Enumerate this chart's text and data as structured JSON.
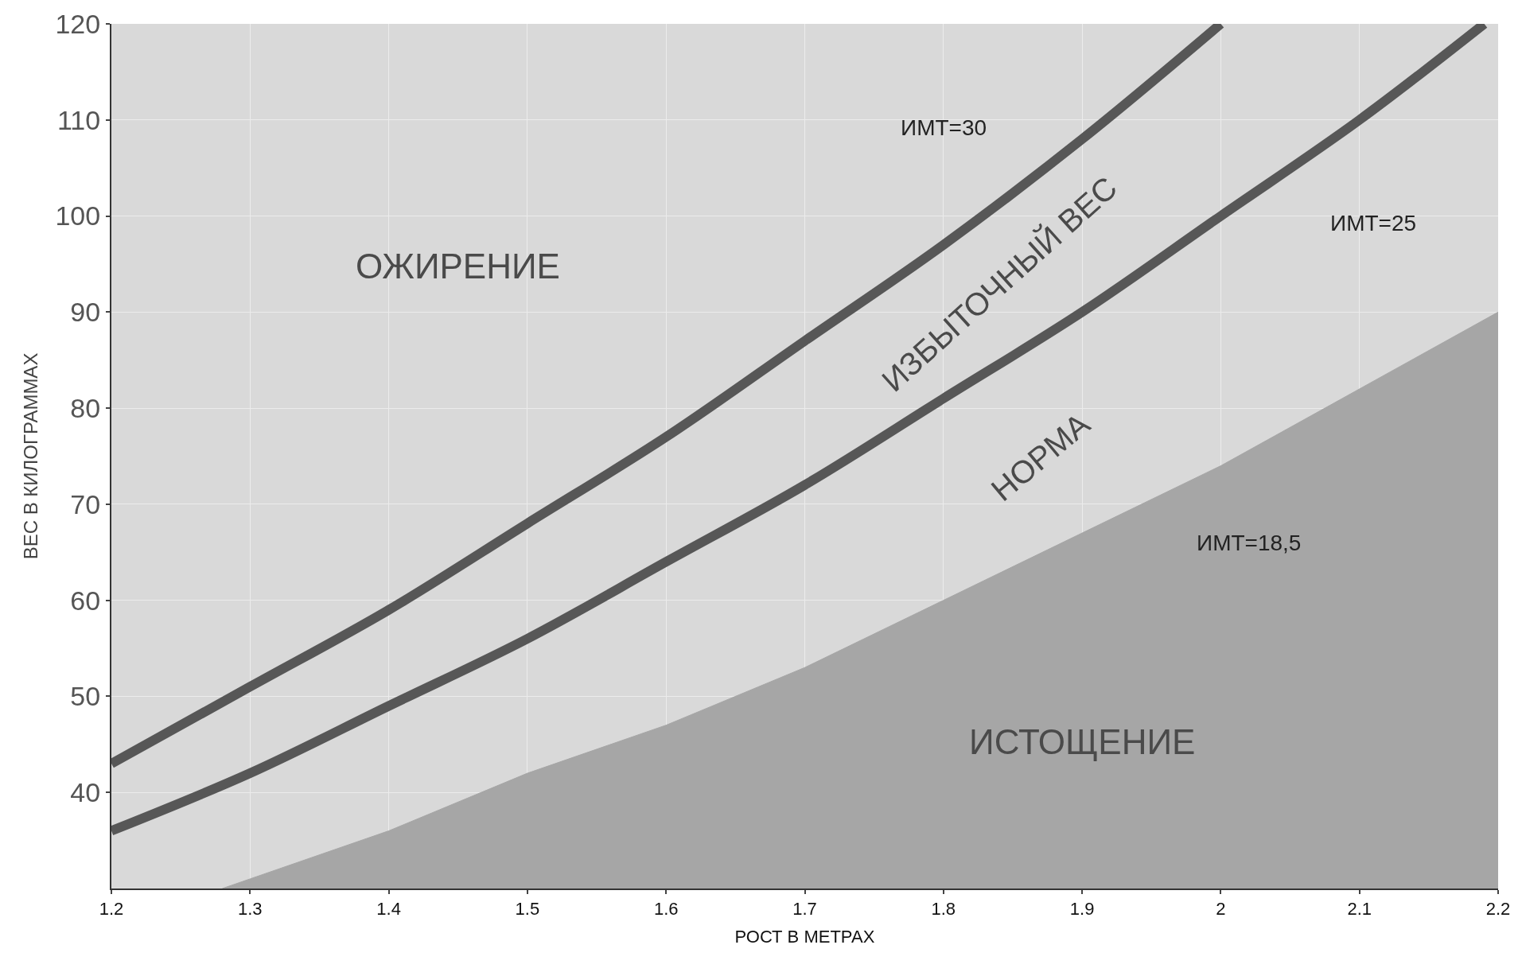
{
  "chart_data": {
    "type": "line",
    "xlabel": "РОСТ В МЕТРАХ",
    "ylabel": "ВЕС В КИЛОГРАММАХ",
    "xlim": [
      1.2,
      2.2
    ],
    "xticks": [
      1.2,
      1.3,
      1.4,
      1.5,
      1.6,
      1.7,
      1.8,
      1.9,
      2,
      2.1,
      2.2
    ],
    "ylim": [
      30,
      120
    ],
    "yticks": [
      40,
      50,
      60,
      70,
      80,
      90,
      100,
      110,
      120
    ],
    "grid": true,
    "series": [
      {
        "type": "area",
        "color": "#a6a6a6",
        "x": [
          1.28,
          1.3,
          1.4,
          1.5,
          1.6,
          1.7,
          1.8,
          1.9,
          2.0,
          2.1,
          2.2
        ],
        "values": [
          30,
          31,
          36,
          42,
          47,
          53,
          60,
          67,
          74,
          82,
          90
        ]
      },
      {
        "color": "#575757",
        "x": [
          1.2,
          1.3,
          1.4,
          1.5,
          1.6,
          1.7,
          1.8,
          1.9,
          2.0,
          2.1,
          2.19
        ],
        "values": [
          36,
          42,
          49,
          56,
          64,
          72,
          81,
          90,
          100,
          110,
          120
        ]
      },
      {
        "color": "#575757",
        "x": [
          1.2,
          1.3,
          1.4,
          1.5,
          1.6,
          1.7,
          1.8,
          1.9,
          2.0
        ],
        "values": [
          43,
          51,
          59,
          68,
          77,
          87,
          97,
          108,
          120
        ]
      }
    ],
    "annotations": [
      "ОЖИРЕНИЕ",
      "ИЗБЫТОЧНЫЙ ВЕС",
      "НОРМА",
      "ИСТОЩЕНИЕ",
      "ИМТ=30",
      "ИМТ=25",
      "ИМТ=18,5"
    ]
  }
}
